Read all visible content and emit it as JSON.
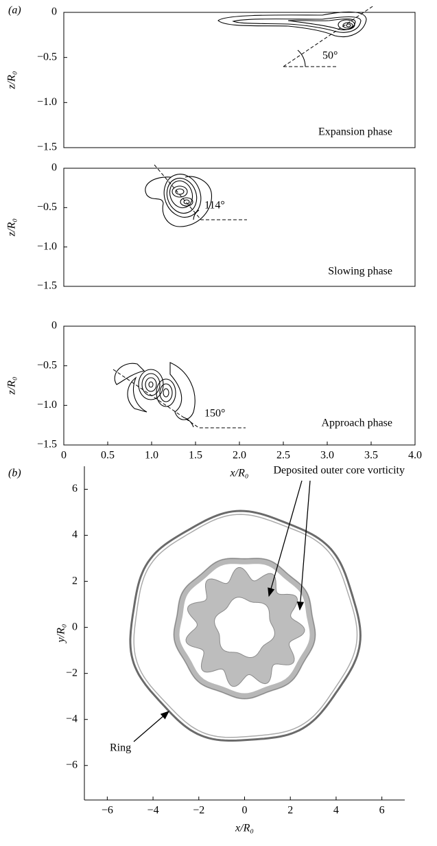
{
  "chart_data": [
    {
      "type": "contour",
      "panel_label": "(a)",
      "ylabel": "z/R₀",
      "xlim": [
        0,
        4
      ],
      "ylim": [
        -1.5,
        0
      ],
      "yticks": [
        0,
        {
          "value": -0.5,
          "label": "−0.5"
        },
        {
          "value": -1,
          "label": "−1.0"
        },
        {
          "value": -1.5,
          "label": "−1.5"
        }
      ],
      "annotations": [
        "50°",
        "Expansion phase"
      ]
    },
    {
      "type": "contour",
      "ylabel": "z/R₀",
      "xlim": [
        0,
        4
      ],
      "ylim": [
        -1.5,
        0
      ],
      "yticks": [
        0,
        {
          "value": -0.5,
          "label": "−0.5"
        },
        {
          "value": -1,
          "label": "−1.0"
        },
        {
          "value": -1.5,
          "label": "−1.5"
        }
      ],
      "annotations": [
        "114°",
        "Slowing phase"
      ]
    },
    {
      "type": "contour",
      "ylabel": "z/R₀",
      "xlabel": "x/R₀",
      "xlim": [
        0,
        4
      ],
      "ylim": [
        -1.5,
        0
      ],
      "yticks": [
        0,
        {
          "value": -0.5,
          "label": "−0.5"
        },
        {
          "value": -1,
          "label": "−1.0"
        },
        {
          "value": -1.5,
          "label": "−1.5"
        }
      ],
      "xticks": [
        0,
        0.5,
        {
          "value": 1,
          "label": "1.0"
        },
        1.5,
        {
          "value": 2,
          "label": "2.0"
        },
        2.5,
        {
          "value": 3,
          "label": "3.0"
        },
        3.5,
        {
          "value": 4,
          "label": "4.0"
        }
      ],
      "annotations": [
        "150°",
        "Approach phase"
      ]
    },
    {
      "type": "isosurface",
      "panel_label": "(b)",
      "xlabel": "x/R₀",
      "ylabel": "y/R₀",
      "xlim": [
        -7,
        7
      ],
      "ylim": [
        -7.5,
        7
      ],
      "xticks": [
        {
          "value": -6,
          "label": "−6"
        },
        {
          "value": -4,
          "label": "−4"
        },
        {
          "value": -2,
          "label": "−2"
        },
        0,
        2,
        4,
        6
      ],
      "yticks": [
        {
          "value": -6,
          "label": "−6"
        },
        {
          "value": -4,
          "label": "−4"
        },
        {
          "value": -2,
          "label": "−2"
        },
        0,
        2,
        4,
        6
      ],
      "annotations": [
        "Deposited outer core vorticity",
        "Ring"
      ]
    }
  ]
}
